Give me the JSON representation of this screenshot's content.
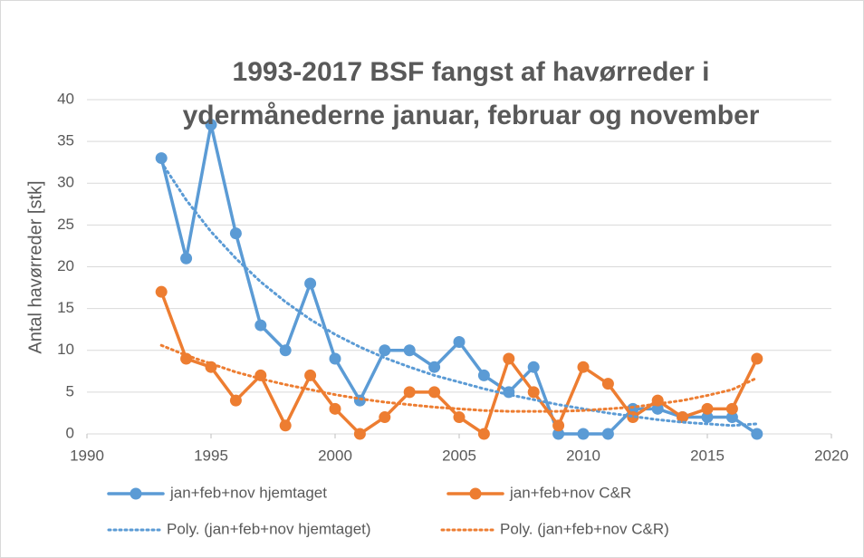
{
  "chart_data": {
    "type": "line",
    "title": "1993-2017 BSF fangst af havørreder i ydermånederne januar, februar og november",
    "y_label": "Antal havørreder [stk]",
    "x": [
      1993,
      1994,
      1995,
      1996,
      1997,
      1998,
      1999,
      2000,
      2001,
      2002,
      2003,
      2004,
      2005,
      2006,
      2007,
      2008,
      2009,
      2010,
      2011,
      2012,
      2013,
      2014,
      2015,
      2016,
      2017
    ],
    "series": [
      {
        "name": "jan+feb+nov hjemtaget",
        "color": "#5b9bd5",
        "line_style": "solid",
        "markers": true,
        "values": [
          33,
          21,
          37,
          24,
          13,
          10,
          18,
          9,
          4,
          10,
          10,
          8,
          11,
          7,
          5,
          8,
          0,
          0,
          0,
          3,
          3,
          2,
          2,
          2,
          0
        ]
      },
      {
        "name": "jan+feb+nov C&R",
        "color": "#ed7d31",
        "line_style": "solid",
        "markers": true,
        "values": [
          17,
          9,
          8,
          4,
          7,
          1,
          7,
          3,
          0,
          2,
          5,
          5,
          2,
          0,
          9,
          5,
          1,
          8,
          6,
          2,
          4,
          2,
          3,
          3,
          9
        ]
      },
      {
        "name": "Poly. (jan+feb+nov hjemtaget)",
        "color": "#5b9bd5",
        "line_style": "dotted",
        "markers": false,
        "values": [
          32.5,
          28,
          24.2,
          21,
          18.2,
          15.8,
          13.7,
          11.9,
          10.4,
          9.1,
          8,
          7,
          6.2,
          5.4,
          4.7,
          4.1,
          3.5,
          3,
          2.5,
          2.1,
          1.7,
          1.4,
          1.2,
          1,
          1.2
        ]
      },
      {
        "name": "Poly. (jan+feb+nov C&R)",
        "color": "#ed7d31",
        "line_style": "dotted",
        "markers": false,
        "values": [
          10.6,
          9.4,
          8.4,
          7.4,
          6.6,
          5.9,
          5.3,
          4.7,
          4.2,
          3.8,
          3.5,
          3.2,
          3,
          2.8,
          2.7,
          2.7,
          2.7,
          2.8,
          3,
          3.2,
          3.6,
          4,
          4.6,
          5.3,
          6.7
        ]
      }
    ],
    "xlim": [
      1990,
      2020
    ],
    "xticks": [
      1990,
      1995,
      2000,
      2005,
      2010,
      2015,
      2020
    ],
    "ylim": [
      0,
      40
    ],
    "yticks": [
      0,
      5,
      10,
      15,
      20,
      25,
      30,
      35,
      40
    ],
    "grid": true,
    "legend": "bottom"
  }
}
